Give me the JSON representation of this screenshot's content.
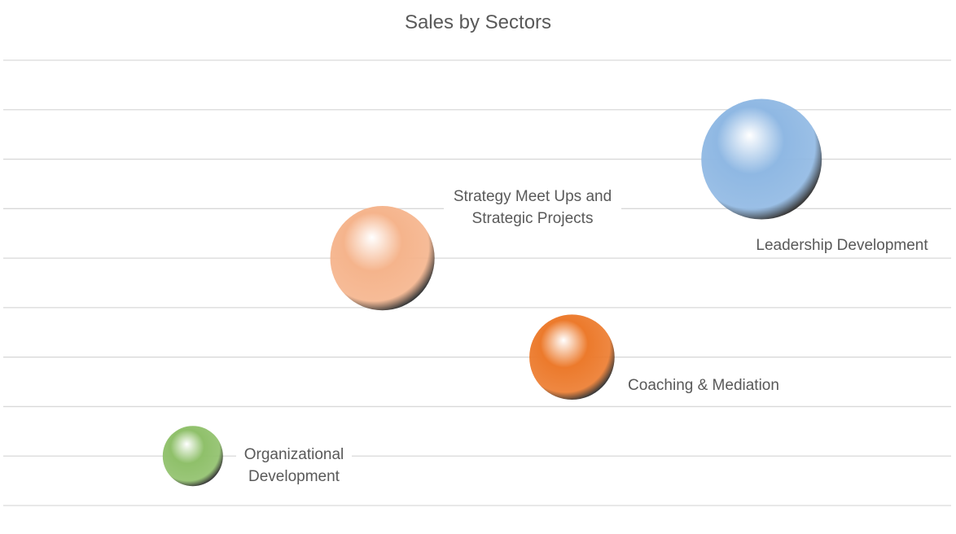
{
  "chart_data": {
    "type": "bubble",
    "title": "Sales by Sectors",
    "series": [
      {
        "name": null,
        "points": [
          {
            "label": "Organizational Development",
            "x": 1,
            "y": 1,
            "size": 1,
            "color": "#8fc06a"
          },
          {
            "label": "Strategy Meet Ups and Strategic Projects",
            "x": 2,
            "y": 5,
            "size": 3,
            "color": "#f5b48c"
          },
          {
            "label": "Coaching & Mediation",
            "x": 3,
            "y": 3,
            "size": 2,
            "color": "#ec7a2c"
          },
          {
            "label": "Leadership Development",
            "x": 4,
            "y": 7,
            "size": 4,
            "color": "#8fb8e3"
          }
        ]
      }
    ],
    "xlim": [
      0,
      5
    ],
    "ylim": [
      0,
      9
    ],
    "yticks": [
      0,
      1,
      2,
      3,
      4,
      5,
      6,
      7,
      8,
      9
    ],
    "grid": true
  }
}
